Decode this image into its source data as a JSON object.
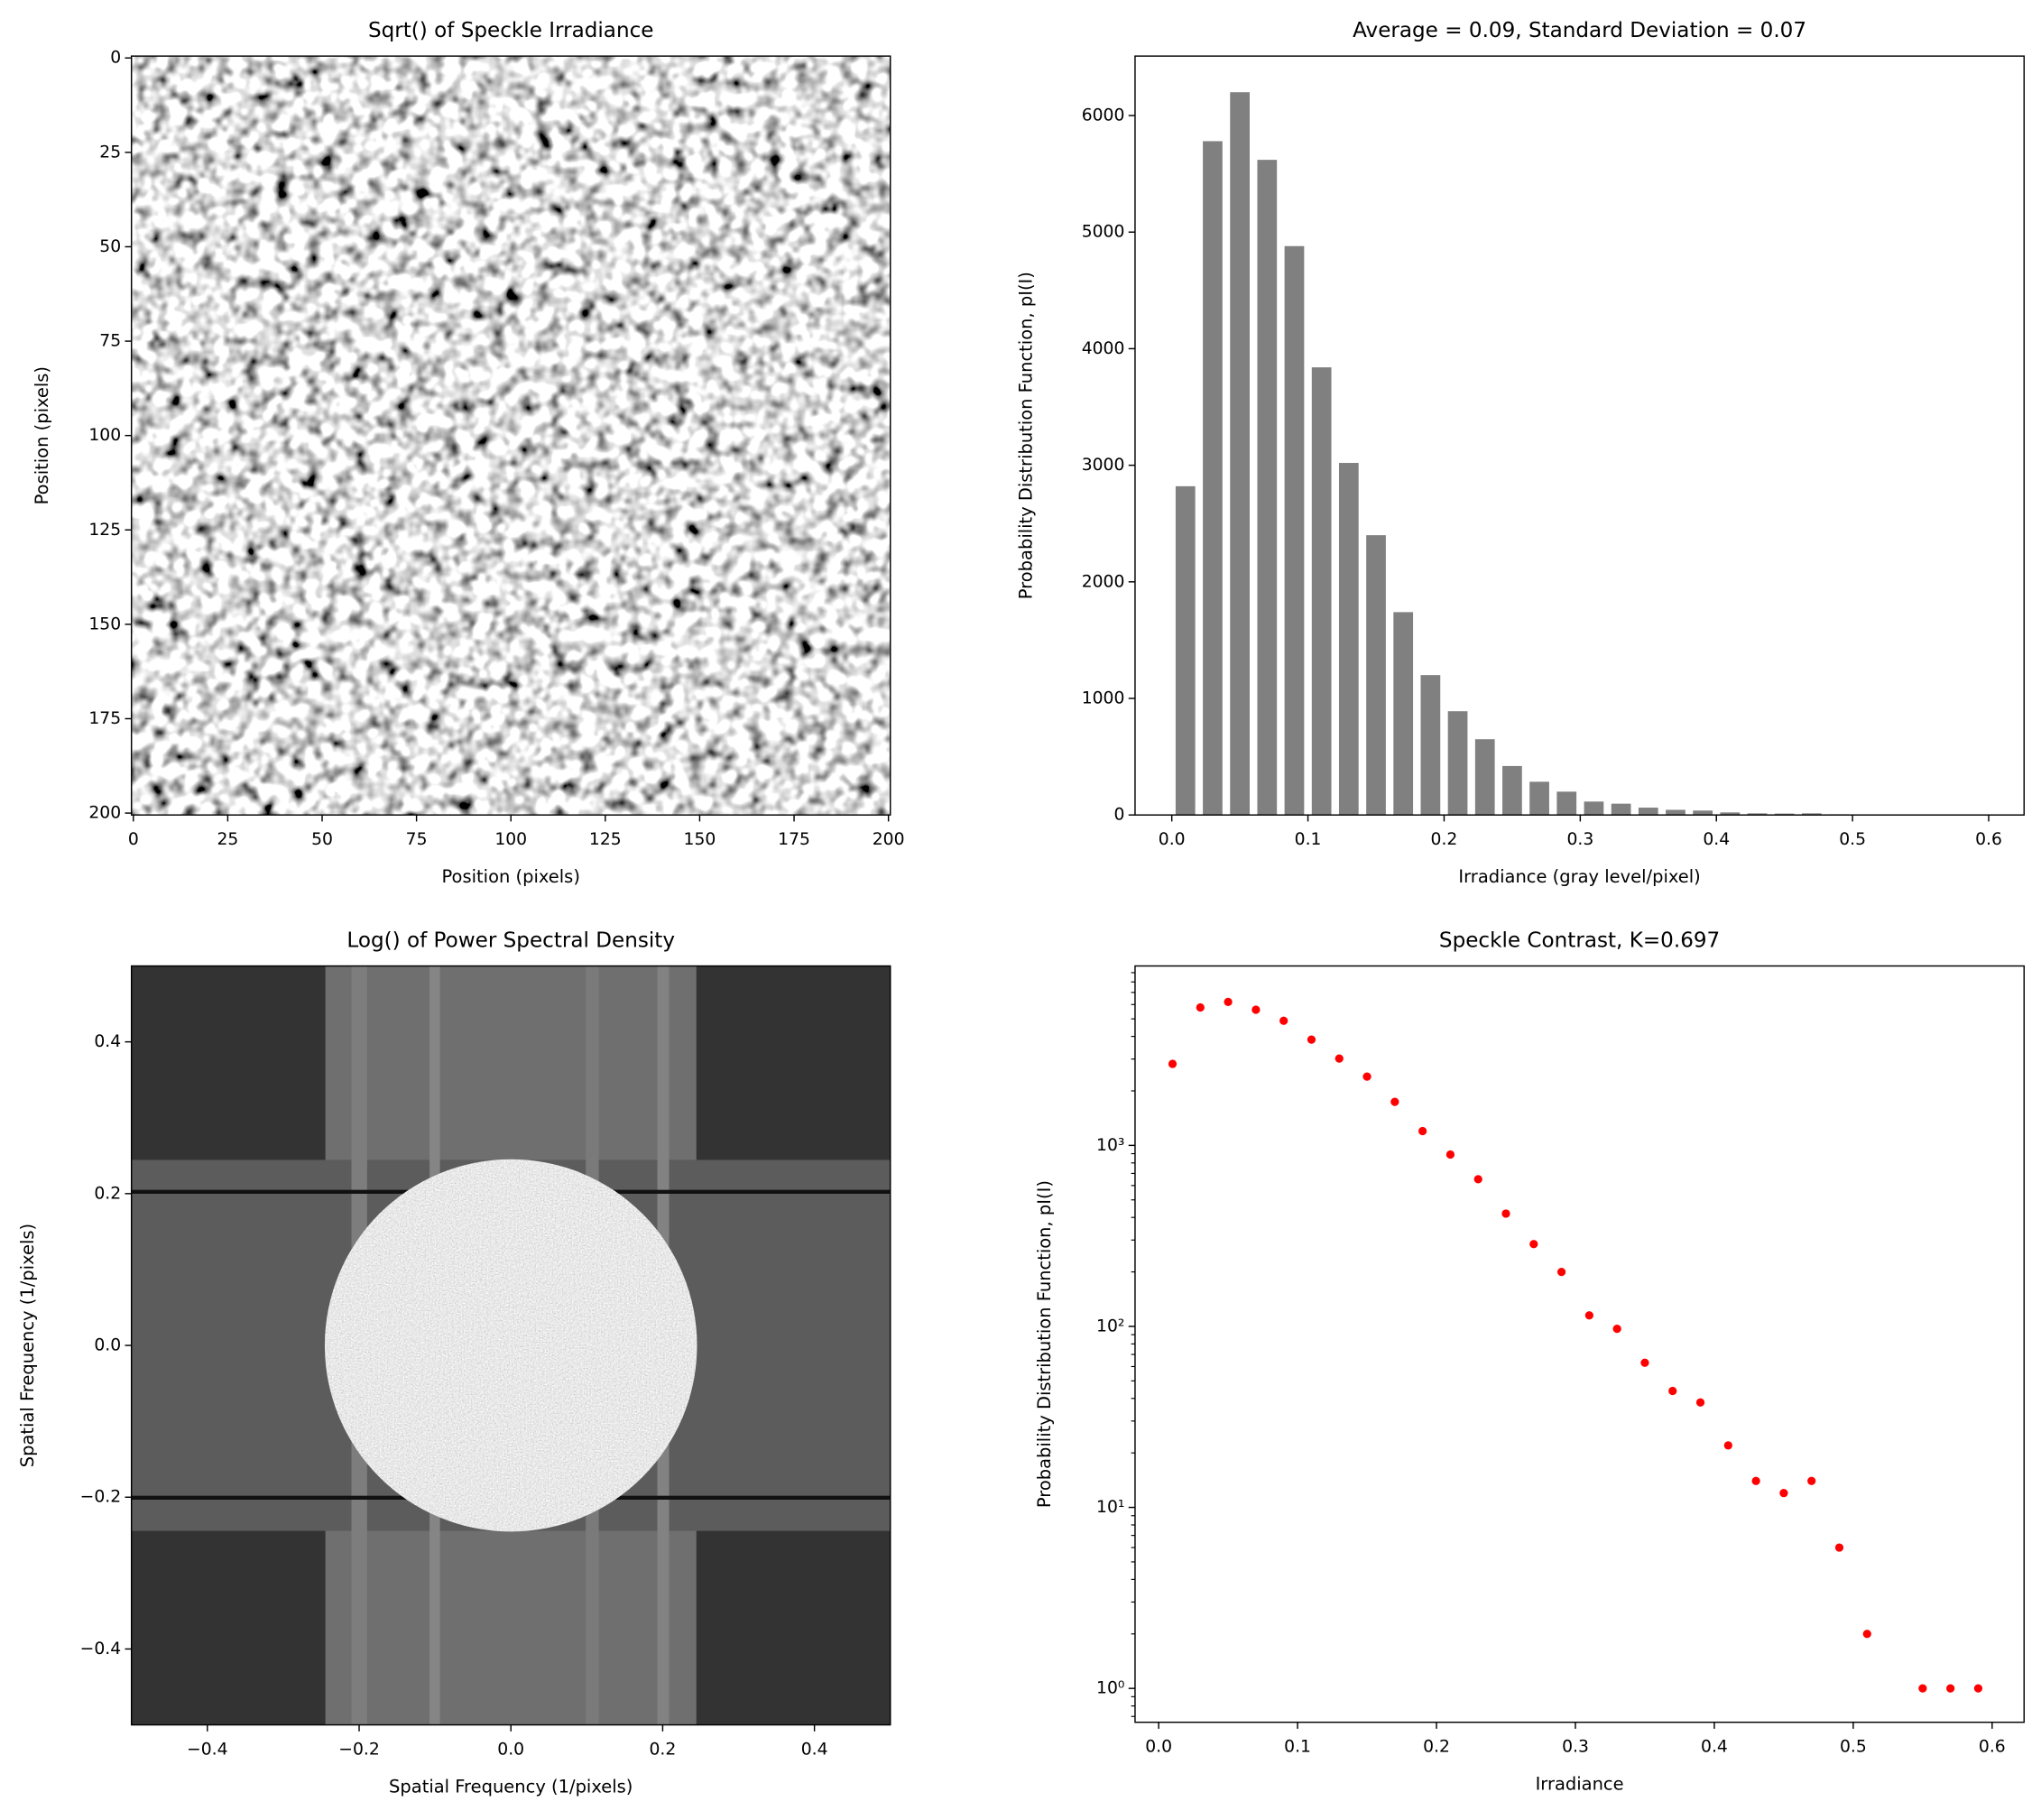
{
  "chart_data": [
    {
      "type": "image",
      "title": "Sqrt() of Speckle Irradiance",
      "xlabel": "Position (pixels)",
      "ylabel": "Position (pixels)",
      "xlim": [
        -0.5,
        200.5
      ],
      "ylim": [
        200.5,
        -0.5
      ],
      "xticks": [
        0,
        25,
        50,
        75,
        100,
        125,
        150,
        175,
        200
      ],
      "yticks": [
        0,
        25,
        50,
        75,
        100,
        125,
        150,
        175,
        200
      ]
    },
    {
      "type": "bar",
      "title": "Average = 0.09, Standard Deviation = 0.07",
      "xlabel": "Irradiance (gray level/pixel)",
      "ylabel": "Probability Distribution Function, pI(I)",
      "x": [
        0.01,
        0.03,
        0.05,
        0.07,
        0.09,
        0.11,
        0.13,
        0.15,
        0.17,
        0.19,
        0.21,
        0.23,
        0.25,
        0.27,
        0.29,
        0.31,
        0.33,
        0.35,
        0.37,
        0.39,
        0.41,
        0.43,
        0.45,
        0.47,
        0.49,
        0.51,
        0.53,
        0.55,
        0.57,
        0.59
      ],
      "values": [
        2820,
        5780,
        6200,
        5620,
        4880,
        3840,
        3020,
        2400,
        1740,
        1200,
        890,
        650,
        420,
        285,
        200,
        115,
        97,
        63,
        44,
        38,
        22,
        14,
        12,
        14,
        6,
        2,
        0,
        1,
        1,
        1
      ],
      "color": "#808080",
      "xlim": [
        -0.027,
        0.626
      ],
      "ylim": [
        0,
        6510
      ],
      "xticks": [
        {
          "value": 0,
          "label": "0.0"
        },
        0.1,
        0.2,
        0.3,
        0.4,
        0.5,
        0.6
      ],
      "yticks": [
        0,
        1000,
        2000,
        3000,
        4000,
        5000,
        6000
      ]
    },
    {
      "type": "image",
      "title": "Log() of Power Spectral Density",
      "xlabel": "Spatial Frequency (1/pixels)",
      "ylabel": "Spatial Frequency (1/pixels)",
      "xlim": [
        -0.5,
        0.5
      ],
      "ylim": [
        -0.5,
        0.5
      ],
      "xticks": [
        {
          "value": -0.4,
          "label": "−0.4"
        },
        {
          "value": -0.2,
          "label": "−0.2"
        },
        {
          "value": 0,
          "label": "0.0"
        },
        0.2,
        0.4
      ],
      "yticks": [
        {
          "value": -0.4,
          "label": "−0.4"
        },
        {
          "value": -0.2,
          "label": "−0.2"
        },
        {
          "value": 0,
          "label": "0.0"
        },
        0.2,
        0.4
      ]
    },
    {
      "type": "scatter",
      "title": "Speckle Contrast, K=0.697",
      "xlabel": "Irradiance",
      "ylabel": "Probability Distribution Function, pI(I)",
      "yscale": "log",
      "color": "red",
      "x": [
        0.01,
        0.03,
        0.05,
        0.07,
        0.09,
        0.11,
        0.13,
        0.15,
        0.17,
        0.19,
        0.21,
        0.23,
        0.25,
        0.27,
        0.29,
        0.31,
        0.33,
        0.35,
        0.37,
        0.39,
        0.41,
        0.43,
        0.45,
        0.47,
        0.49,
        0.51,
        0.55,
        0.57,
        0.59
      ],
      "values": [
        2820,
        5780,
        6200,
        5620,
        4880,
        3840,
        3020,
        2400,
        1740,
        1200,
        890,
        650,
        420,
        285,
        200,
        115,
        97,
        63,
        44,
        38,
        22,
        14,
        12,
        14,
        6,
        2,
        1,
        1,
        1
      ],
      "xlim": [
        -0.017,
        0.623
      ],
      "ylim": [
        0.65,
        9800
      ],
      "xticks": [
        {
          "value": 0,
          "label": "0.0"
        },
        0.1,
        0.2,
        0.3,
        0.4,
        0.5,
        0.6
      ],
      "yticks": [
        {
          "value": 1,
          "label": "10⁰"
        },
        {
          "value": 10,
          "label": "10¹"
        },
        {
          "value": 100,
          "label": "10²"
        },
        {
          "value": 1000,
          "label": "10³"
        }
      ]
    }
  ]
}
